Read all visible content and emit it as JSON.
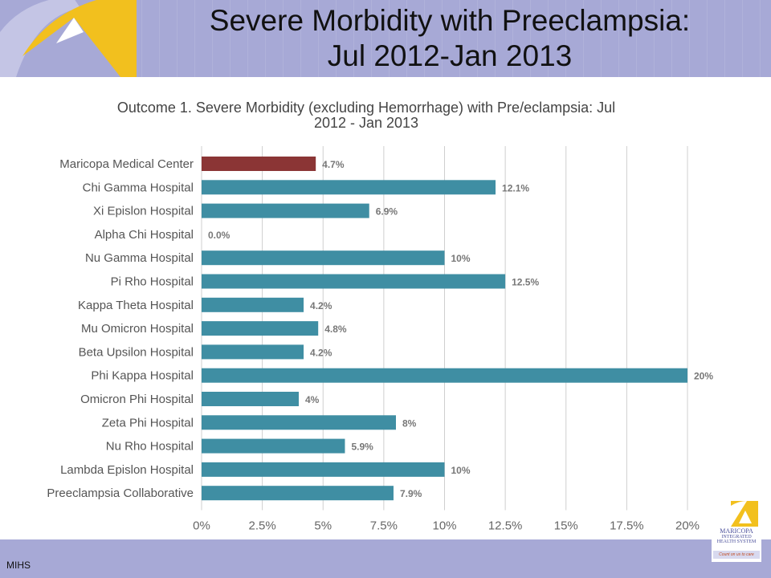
{
  "slide": {
    "title_line1": "Severe Morbidity  with Preeclampsia:",
    "title_line2": "Jul 2012-Jan 2013",
    "footer": "MIHS",
    "logo_brand_line1": "MARICOPA",
    "logo_brand_line2": "INTEGRATED",
    "logo_brand_line3": "HEALTH SYSTEM",
    "logo_tagline": "Count on us to care"
  },
  "colors": {
    "header_band": "#a7a9d6",
    "highlight_bar": "#8b3535",
    "default_bar": "#3f8ea3",
    "logo_yellow": "#f2c01e",
    "logo_purple": "#5a5fa8"
  },
  "chart_data": {
    "type": "bar",
    "orientation": "horizontal",
    "title_line1": "Outcome 1. Severe Morbidity (excluding Hemorrhage) with Pre/eclampsia: Jul",
    "title_line2": "2012 - Jan 2013",
    "categories": [
      "Maricopa Medical Center",
      "Chi Gamma Hospital",
      "Xi Epislon Hospital",
      "Alpha Chi Hospital",
      "Nu Gamma Hospital",
      "Pi Rho Hospital",
      "Kappa Theta Hospital",
      "Mu Omicron Hospital",
      "Beta Upsilon Hospital",
      "Phi Kappa Hospital",
      "Omicron Phi Hospital",
      "Zeta Phi Hospital",
      "Nu Rho Hospital",
      "Lambda Epislon Hospital",
      "Preeclampsia Collaborative"
    ],
    "values": [
      4.7,
      12.1,
      6.9,
      0.0,
      10,
      12.5,
      4.2,
      4.8,
      4.2,
      20,
      4,
      8,
      5.9,
      10,
      7.9
    ],
    "value_labels": [
      "4.7%",
      "12.1%",
      "6.9%",
      "0.0%",
      "10%",
      "12.5%",
      "4.2%",
      "4.8%",
      "4.2%",
      "20%",
      "4%",
      "8%",
      "5.9%",
      "10%",
      "7.9%"
    ],
    "highlight_index": 0,
    "xlim": [
      0,
      20
    ],
    "xticks": [
      0,
      2.5,
      5,
      7.5,
      10,
      12.5,
      15,
      17.5,
      20
    ],
    "xtick_labels": [
      "0%",
      "2.5%",
      "5%",
      "7.5%",
      "10%",
      "12.5%",
      "15%",
      "17.5%",
      "20%"
    ],
    "grid": "vertical",
    "legend": "none"
  }
}
